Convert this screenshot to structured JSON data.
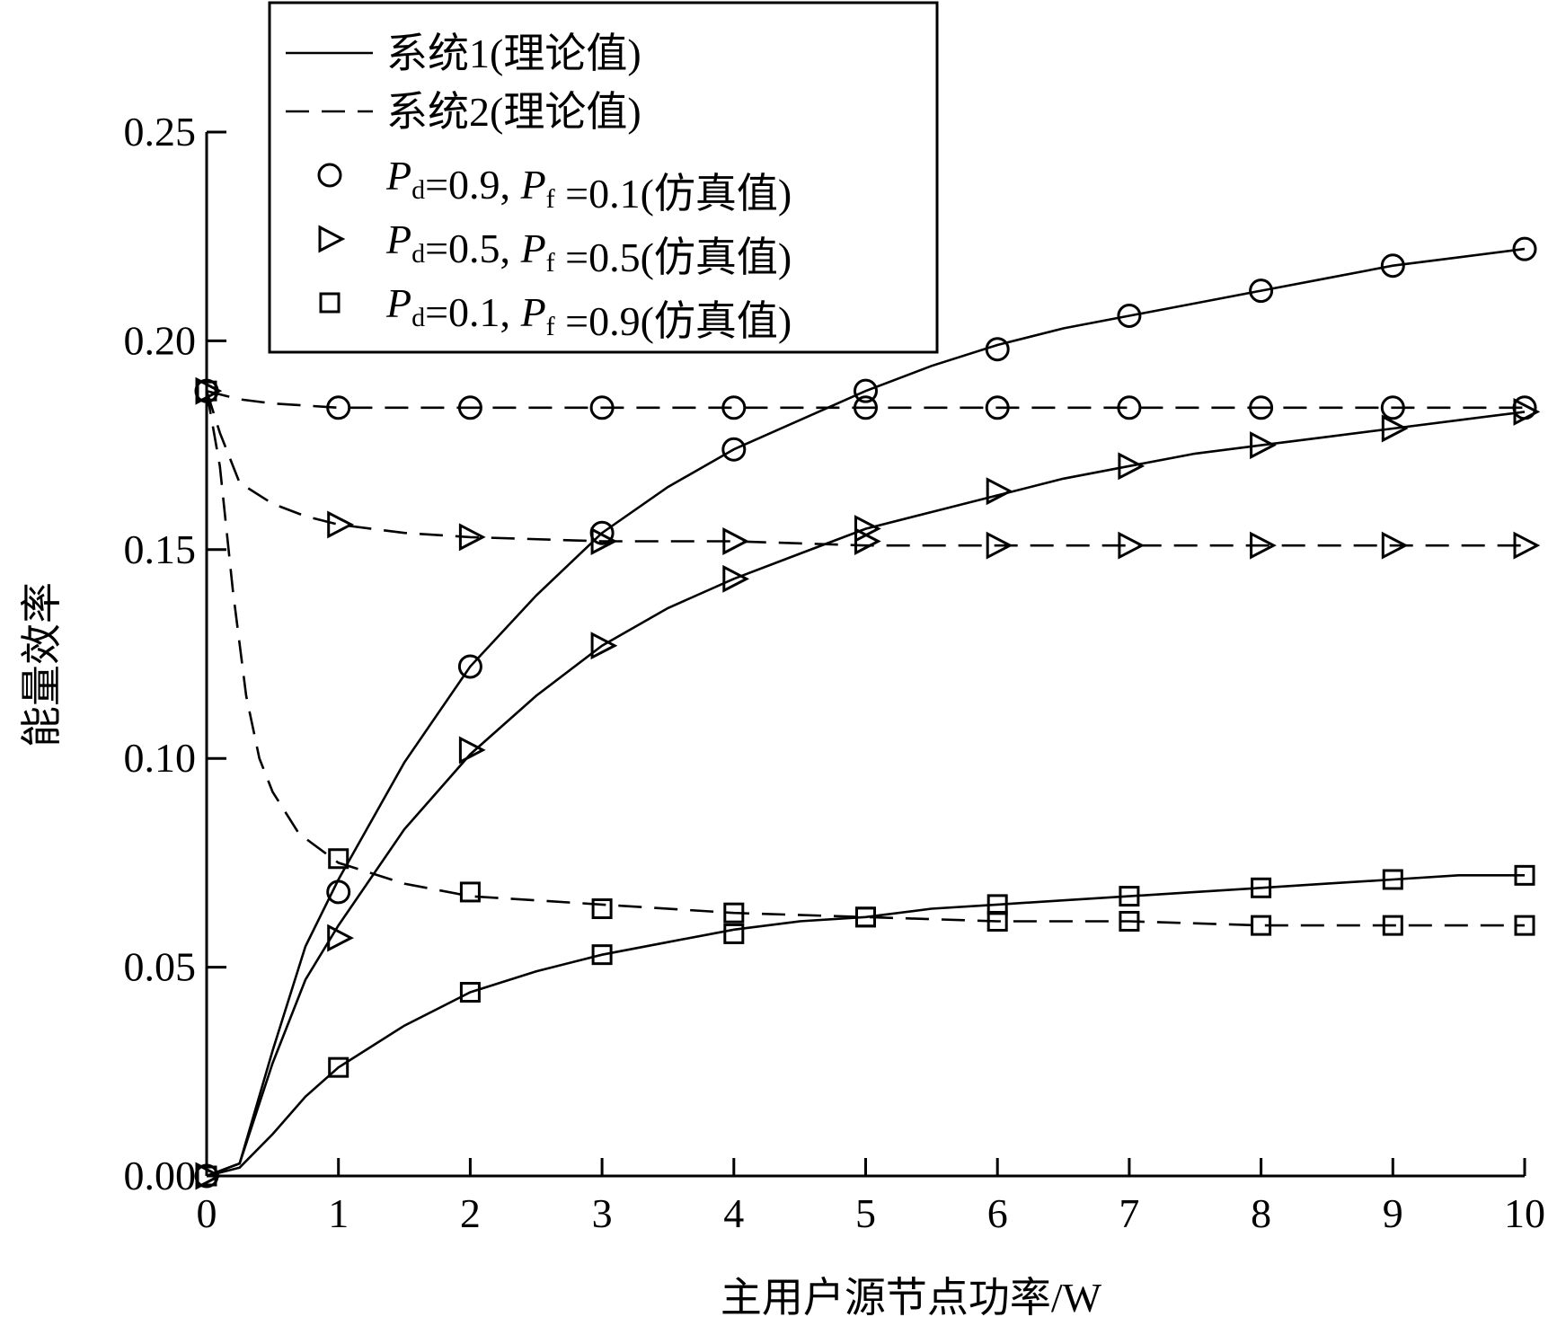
{
  "chart_data": {
    "type": "line",
    "xlabel": "主用户源节点功率/W",
    "ylabel": "能量效率",
    "xlim": [
      0,
      10
    ],
    "ylim": [
      0,
      0.25
    ],
    "xticks": [
      0,
      1,
      2,
      3,
      4,
      5,
      6,
      7,
      8,
      9,
      10
    ],
    "xtick_labels": [
      "0",
      "1",
      "2",
      "3",
      "4",
      "5",
      "6",
      "7",
      "8",
      "9",
      "10"
    ],
    "yticks": [
      0,
      0.05,
      0.1,
      0.15,
      0.2,
      0.25
    ],
    "ytick_labels": [
      "0.00",
      "0.05",
      "0.10",
      "0.15",
      "0.20",
      "0.25"
    ],
    "grid": false,
    "legend_position": "top-center",
    "legend": [
      {
        "kind": "solid",
        "text": "系统1(理论值)"
      },
      {
        "kind": "dashed",
        "text": "系统2(理论值)"
      },
      {
        "kind": "circle",
        "p": "P",
        "sub_d": "d",
        "pd": "=0.9, ",
        "sub_f": "f",
        "pf": " =0.1(仿真值)"
      },
      {
        "kind": "triangle",
        "p": "P",
        "sub_d": "d",
        "pd": "=0.5, ",
        "sub_f": "f",
        "pf": " =0.5(仿真值)"
      },
      {
        "kind": "square",
        "p": "P",
        "sub_d": "d",
        "pd": "=0.1, ",
        "sub_f": "f",
        "pf": " =0.9(仿真值)"
      }
    ],
    "series": [
      {
        "system": 1,
        "marker": "circle",
        "style": "solid",
        "x": [
          0,
          0.25,
          0.5,
          0.75,
          1,
          1.5,
          2,
          2.5,
          3,
          3.5,
          4,
          4.5,
          5,
          5.5,
          6,
          6.5,
          7,
          7.5,
          8,
          8.5,
          9,
          9.5,
          10
        ],
        "y": [
          0,
          0.003,
          0.03,
          0.055,
          0.071,
          0.099,
          0.122,
          0.139,
          0.154,
          0.165,
          0.174,
          0.181,
          0.188,
          0.194,
          0.199,
          0.203,
          0.206,
          0.209,
          0.212,
          0.215,
          0.218,
          0.22,
          0.222
        ],
        "markers_x": [
          0,
          1,
          2,
          3,
          4,
          5,
          6,
          7,
          8,
          9,
          10
        ],
        "markers_y": [
          0,
          0.068,
          0.122,
          0.154,
          0.174,
          0.188,
          0.198,
          0.206,
          0.212,
          0.218,
          0.222
        ]
      },
      {
        "system": 1,
        "marker": "triangle",
        "style": "solid",
        "x": [
          0,
          0.25,
          0.5,
          0.75,
          1,
          1.5,
          2,
          2.5,
          3,
          3.5,
          4,
          4.5,
          5,
          5.5,
          6,
          6.5,
          7,
          7.5,
          8,
          8.5,
          9,
          9.5,
          10
        ],
        "y": [
          0,
          0.003,
          0.027,
          0.047,
          0.06,
          0.083,
          0.101,
          0.115,
          0.127,
          0.136,
          0.143,
          0.149,
          0.155,
          0.159,
          0.163,
          0.167,
          0.17,
          0.173,
          0.175,
          0.177,
          0.179,
          0.181,
          0.183
        ],
        "markers_x": [
          0,
          1,
          2,
          3,
          4,
          5,
          6,
          7,
          8,
          9,
          10
        ],
        "markers_y": [
          0,
          0.057,
          0.102,
          0.127,
          0.143,
          0.155,
          0.164,
          0.17,
          0.175,
          0.179,
          0.183
        ]
      },
      {
        "system": 1,
        "marker": "square",
        "style": "solid",
        "x": [
          0,
          0.25,
          0.5,
          0.75,
          1,
          1.5,
          2,
          2.5,
          3,
          3.5,
          4,
          4.5,
          5,
          5.5,
          6,
          6.5,
          7,
          7.5,
          8,
          8.5,
          9,
          9.5,
          10
        ],
        "y": [
          0,
          0.002,
          0.01,
          0.019,
          0.026,
          0.036,
          0.044,
          0.049,
          0.053,
          0.056,
          0.059,
          0.061,
          0.062,
          0.064,
          0.065,
          0.066,
          0.067,
          0.068,
          0.069,
          0.07,
          0.071,
          0.072,
          0.072
        ],
        "markers_x": [
          0,
          1,
          2,
          3,
          4,
          5,
          6,
          7,
          8,
          9,
          10
        ],
        "markers_y": [
          0,
          0.026,
          0.044,
          0.053,
          0.058,
          0.062,
          0.065,
          0.067,
          0.069,
          0.071,
          0.072
        ]
      },
      {
        "system": 2,
        "marker": "circle",
        "style": "dashed",
        "x": [
          0,
          0.25,
          0.5,
          1,
          1.5,
          2,
          3,
          4,
          5,
          6,
          7,
          8,
          9,
          10
        ],
        "y": [
          0.188,
          0.186,
          0.185,
          0.184,
          0.184,
          0.184,
          0.184,
          0.184,
          0.184,
          0.184,
          0.184,
          0.184,
          0.184,
          0.184
        ],
        "markers_x": [
          0,
          1,
          2,
          3,
          4,
          5,
          6,
          7,
          8,
          9,
          10
        ],
        "markers_y": [
          0.188,
          0.184,
          0.184,
          0.184,
          0.184,
          0.184,
          0.184,
          0.184,
          0.184,
          0.184,
          0.184
        ]
      },
      {
        "system": 2,
        "marker": "triangle",
        "style": "dashed",
        "x": [
          0,
          0.1,
          0.25,
          0.5,
          0.75,
          1,
          1.5,
          2,
          3,
          4,
          5,
          6,
          7,
          8,
          9,
          10
        ],
        "y": [
          0.188,
          0.178,
          0.166,
          0.161,
          0.158,
          0.156,
          0.154,
          0.153,
          0.152,
          0.152,
          0.151,
          0.151,
          0.151,
          0.151,
          0.151,
          0.151
        ],
        "markers_x": [
          0,
          1,
          2,
          3,
          4,
          5,
          6,
          7,
          8,
          9,
          10
        ],
        "markers_y": [
          0.188,
          0.156,
          0.153,
          0.152,
          0.152,
          0.152,
          0.151,
          0.151,
          0.151,
          0.151,
          0.151
        ]
      },
      {
        "system": 2,
        "marker": "square",
        "style": "dashed",
        "x": [
          0,
          0.1,
          0.2,
          0.3,
          0.4,
          0.5,
          0.7,
          1,
          1.5,
          2,
          2.5,
          3,
          4,
          5,
          6,
          7,
          8,
          9,
          10
        ],
        "y": [
          0.188,
          0.17,
          0.14,
          0.115,
          0.1,
          0.092,
          0.082,
          0.075,
          0.07,
          0.067,
          0.066,
          0.065,
          0.063,
          0.062,
          0.061,
          0.061,
          0.06,
          0.06,
          0.06
        ],
        "markers_x": [
          0,
          1,
          2,
          3,
          4,
          5,
          6,
          7,
          8,
          9,
          10
        ],
        "markers_y": [
          0.188,
          0.076,
          0.068,
          0.064,
          0.063,
          0.062,
          0.061,
          0.061,
          0.06,
          0.06,
          0.06
        ]
      }
    ]
  }
}
